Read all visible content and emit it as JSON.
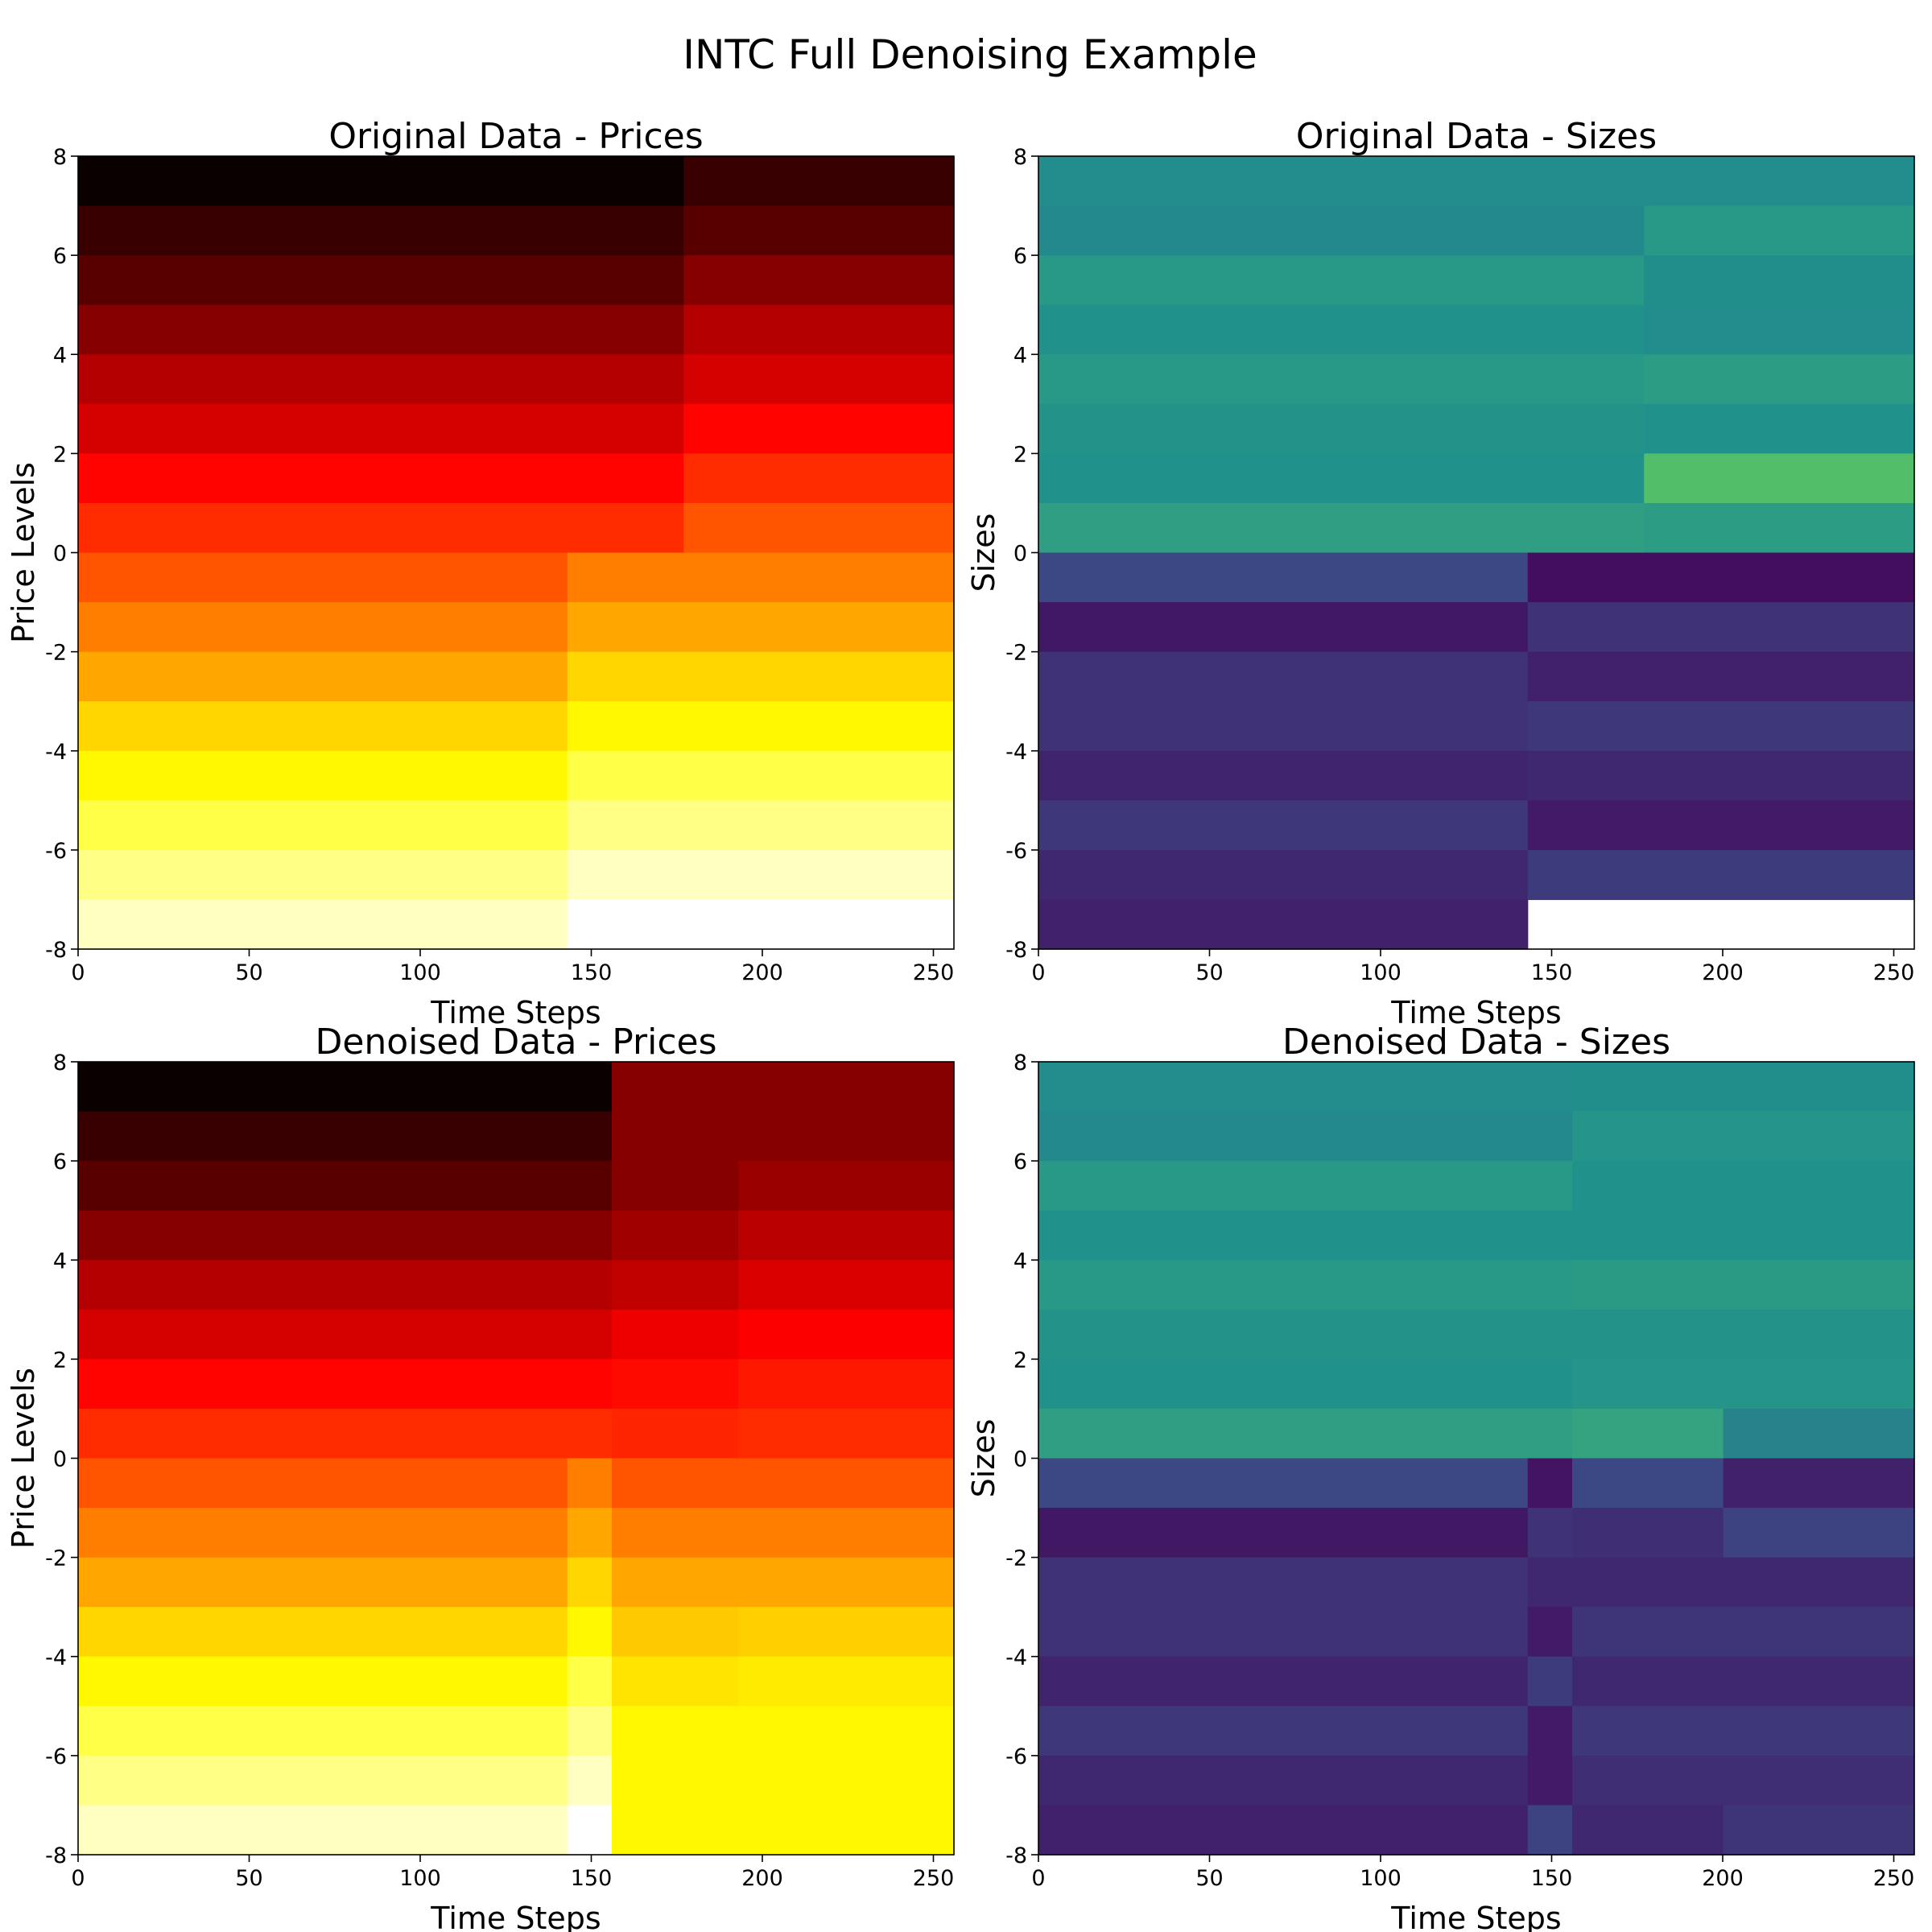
{
  "figure": {
    "title": "INTC Full Denoising Example"
  },
  "chart_data": [
    {
      "type": "heatmap",
      "title": "Original Data - Prices",
      "xlabel": "Time Steps",
      "ylabel": "Price Levels",
      "xlim": [
        0,
        256
      ],
      "ylim": [
        -8,
        8
      ],
      "xticks": [
        "0",
        "50",
        "100",
        "150",
        "200",
        "250"
      ],
      "yticks": [
        "8",
        "6",
        "4",
        "2",
        "0",
        "-2",
        "-4",
        "-6",
        "-8"
      ],
      "colormap": "hot",
      "rows": 16,
      "segments": [
        {
          "x0": 0,
          "x1": 177,
          "rows": [
            0.0,
            0.07,
            0.12,
            0.19,
            0.26,
            0.31,
            0.38,
            0.44
          ]
        },
        {
          "x0": 177,
          "x1": 256,
          "rows": [
            0.07,
            0.12,
            0.19,
            0.26,
            0.31,
            0.38,
            0.44,
            0.5
          ]
        },
        {
          "x0": 0,
          "x1": 143,
          "rows": [
            null,
            null,
            null,
            null,
            null,
            null,
            null,
            null,
            0.5,
            0.56,
            0.62,
            0.69,
            0.74,
            0.82,
            0.88,
            0.94
          ]
        },
        {
          "x0": 143,
          "x1": 256,
          "rows": [
            null,
            null,
            null,
            null,
            null,
            null,
            null,
            null,
            0.56,
            0.62,
            0.69,
            0.74,
            0.82,
            0.88,
            0.94,
            1.0
          ]
        }
      ]
    },
    {
      "type": "heatmap",
      "title": "Original Data - Sizes",
      "xlabel": "Time Steps",
      "ylabel": "Sizes",
      "xlim": [
        0,
        256
      ],
      "ylim": [
        -8,
        8
      ],
      "xticks": [
        "0",
        "50",
        "100",
        "150",
        "200",
        "250"
      ],
      "yticks": [
        "8",
        "6",
        "4",
        "2",
        "0",
        "-2",
        "-4",
        "-6",
        "-8"
      ],
      "colormap": "viridis",
      "rows": 16,
      "segments": [
        {
          "x0": 0,
          "x1": 177,
          "rows": [
            0.48,
            0.47,
            0.53,
            0.5,
            0.53,
            0.51,
            0.5,
            0.56
          ]
        },
        {
          "x0": 177,
          "x1": 256,
          "rows": [
            0.48,
            0.53,
            0.49,
            0.48,
            0.55,
            0.5,
            0.7,
            0.55
          ]
        },
        {
          "x0": 0,
          "x1": 143,
          "rows": [
            null,
            null,
            null,
            null,
            null,
            null,
            null,
            null,
            0.22,
            0.07,
            0.15,
            0.15,
            0.11,
            0.17,
            0.12,
            0.1
          ]
        },
        {
          "x0": 143,
          "x1": 256,
          "rows": [
            null,
            null,
            null,
            null,
            null,
            null,
            null,
            null,
            0.04,
            0.15,
            0.1,
            0.17,
            0.12,
            0.08,
            0.18,
            null
          ]
        }
      ]
    },
    {
      "type": "heatmap",
      "title": "Denoised Data - Prices",
      "xlabel": "Time Steps",
      "ylabel": "Price Levels",
      "xlim": [
        0,
        256
      ],
      "ylim": [
        -8,
        8
      ],
      "xticks": [
        "0",
        "50",
        "100",
        "150",
        "200",
        "250"
      ],
      "yticks": [
        "8",
        "6",
        "4",
        "2",
        "0",
        "-2",
        "-4",
        "-6",
        "-8"
      ],
      "colormap": "hot",
      "rows": 16,
      "segments": [
        {
          "x0": 0,
          "x1": 156,
          "rows": [
            0.0,
            0.07,
            0.12,
            0.19,
            0.26,
            0.31,
            0.38,
            0.44,
            0.5,
            0.56,
            0.62,
            0.69,
            0.74,
            0.82,
            0.88,
            0.94
          ]
        },
        {
          "x0": 143,
          "x1": 156,
          "rows": [
            null,
            null,
            null,
            null,
            null,
            null,
            null,
            null,
            0.56,
            0.62,
            0.69,
            0.74,
            0.82,
            0.88,
            0.94,
            1.0
          ]
        },
        {
          "x0": 156,
          "x1": 193,
          "rows": [
            0.19,
            0.19,
            0.19,
            0.23,
            0.28,
            0.35,
            0.39,
            0.43,
            0.5,
            0.56,
            0.62,
            0.67,
            0.71,
            0.74,
            0.74,
            0.74
          ]
        },
        {
          "x0": 193,
          "x1": 256,
          "rows": [
            0.19,
            0.19,
            0.22,
            0.27,
            0.32,
            0.37,
            0.41,
            0.44,
            0.5,
            0.56,
            0.62,
            0.68,
            0.72,
            0.74,
            0.74,
            0.74
          ]
        }
      ]
    },
    {
      "type": "heatmap",
      "title": "Denoised Data - Sizes",
      "xlabel": "Time Steps",
      "ylabel": "Sizes",
      "xlim": [
        0,
        256
      ],
      "ylim": [
        -8,
        8
      ],
      "xticks": [
        "0",
        "50",
        "100",
        "150",
        "200",
        "250"
      ],
      "yticks": [
        "8",
        "6",
        "4",
        "2",
        "0",
        "-2",
        "-4",
        "-6",
        "-8"
      ],
      "colormap": "viridis",
      "rows": 16,
      "segments": [
        {
          "x0": 0,
          "x1": 156,
          "rows": [
            0.48,
            0.47,
            0.53,
            0.5,
            0.53,
            0.51,
            0.5,
            0.56,
            0.22,
            0.07,
            0.15,
            0.15,
            0.11,
            0.17,
            0.12,
            0.1
          ]
        },
        {
          "x0": 143,
          "x1": 156,
          "rows": [
            null,
            null,
            null,
            null,
            null,
            null,
            null,
            null,
            0.06,
            0.15,
            0.12,
            0.08,
            0.18,
            0.08,
            0.08,
            0.2
          ]
        },
        {
          "x0": 156,
          "x1": 256,
          "rows": [
            0.49,
            0.52,
            0.5,
            0.5,
            0.54,
            0.51,
            0.52,
            0.44,
            0.1,
            0.2,
            0.12,
            0.16,
            0.12,
            0.17,
            0.14,
            0.16
          ]
        },
        {
          "x0": 156,
          "x1": 200,
          "rows": [
            null,
            null,
            null,
            null,
            null,
            null,
            null,
            0.58,
            0.22,
            0.14,
            null,
            null,
            null,
            null,
            null,
            0.12
          ]
        }
      ]
    }
  ]
}
